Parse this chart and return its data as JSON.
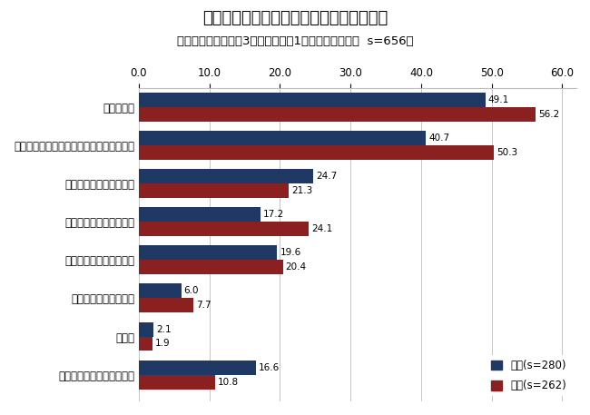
{
  "title": "コインパーキングについて不満に思うこと",
  "subtitle": "（複数回答、対象：3大都市圏で週1回以上運転する人  s=656）",
  "categories": [
    "料金が高い",
    "空いているかどうか行かないと分からない",
    "料金表示が分かりにくい",
    "お金の支払いが煩わしい",
    "空いていないことが多い",
    "使い方が分かりにくい",
    "その他",
    "不満に思うことは特にない"
  ],
  "male_values": [
    49.1,
    40.7,
    24.7,
    17.2,
    19.6,
    6.0,
    2.1,
    16.6
  ],
  "female_values": [
    56.2,
    50.3,
    21.3,
    24.1,
    20.4,
    7.7,
    1.9,
    10.8
  ],
  "male_color": "#1F3864",
  "female_color": "#8B2020",
  "xlim": [
    0,
    62
  ],
  "xticks": [
    0.0,
    10.0,
    20.0,
    30.0,
    40.0,
    50.0,
    60.0
  ],
  "bar_height": 0.38,
  "legend_male": "男性(s=280)",
  "legend_female": "女性(s=262)",
  "title_fontsize": 13,
  "subtitle_fontsize": 9.5,
  "label_fontsize": 8.5,
  "tick_fontsize": 8.5,
  "value_fontsize": 7.5,
  "background_color": "#ffffff"
}
